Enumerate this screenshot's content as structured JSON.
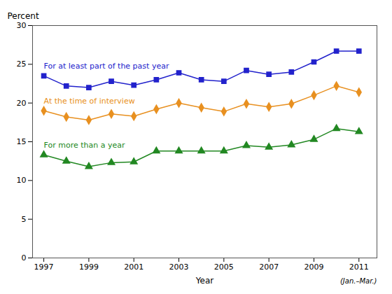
{
  "chart_data": {
    "type": "line",
    "x_label": "Year",
    "y_label": "Percent",
    "annotations": [
      "(Jan.–Mar.)"
    ],
    "x": [
      1997,
      1998,
      1999,
      2000,
      2001,
      2002,
      2003,
      2004,
      2005,
      2006,
      2007,
      2008,
      2009,
      2010,
      2011
    ],
    "series": [
      {
        "name": "For at least part of the past year",
        "color": "#2222cc",
        "marker": "square",
        "values": [
          23.5,
          22.2,
          22.0,
          22.8,
          22.3,
          23.0,
          23.9,
          23.0,
          22.8,
          24.2,
          23.7,
          24.0,
          25.3,
          26.7,
          26.7
        ]
      },
      {
        "name": "At the time of interview",
        "color": "#e89020",
        "marker": "diamond",
        "values": [
          19.0,
          18.2,
          17.8,
          18.6,
          18.3,
          19.2,
          20.0,
          19.4,
          18.9,
          19.9,
          19.5,
          19.9,
          21.0,
          22.2,
          21.4
        ]
      },
      {
        "name": "For more than a year",
        "color": "#228822",
        "marker": "triangle",
        "values": [
          13.3,
          12.5,
          11.8,
          12.3,
          12.4,
          13.8,
          13.8,
          13.8,
          13.8,
          14.5,
          14.3,
          14.6,
          15.3,
          16.7,
          16.3
        ]
      }
    ],
    "xlim": [
      1996.5,
      2011.8
    ],
    "xticks": [
      1997,
      1999,
      2001,
      2003,
      2005,
      2007,
      2009,
      2011
    ],
    "ylim": [
      0,
      30
    ],
    "yticks": [
      0,
      5,
      10,
      15,
      20,
      25,
      30
    ],
    "grid": false
  }
}
